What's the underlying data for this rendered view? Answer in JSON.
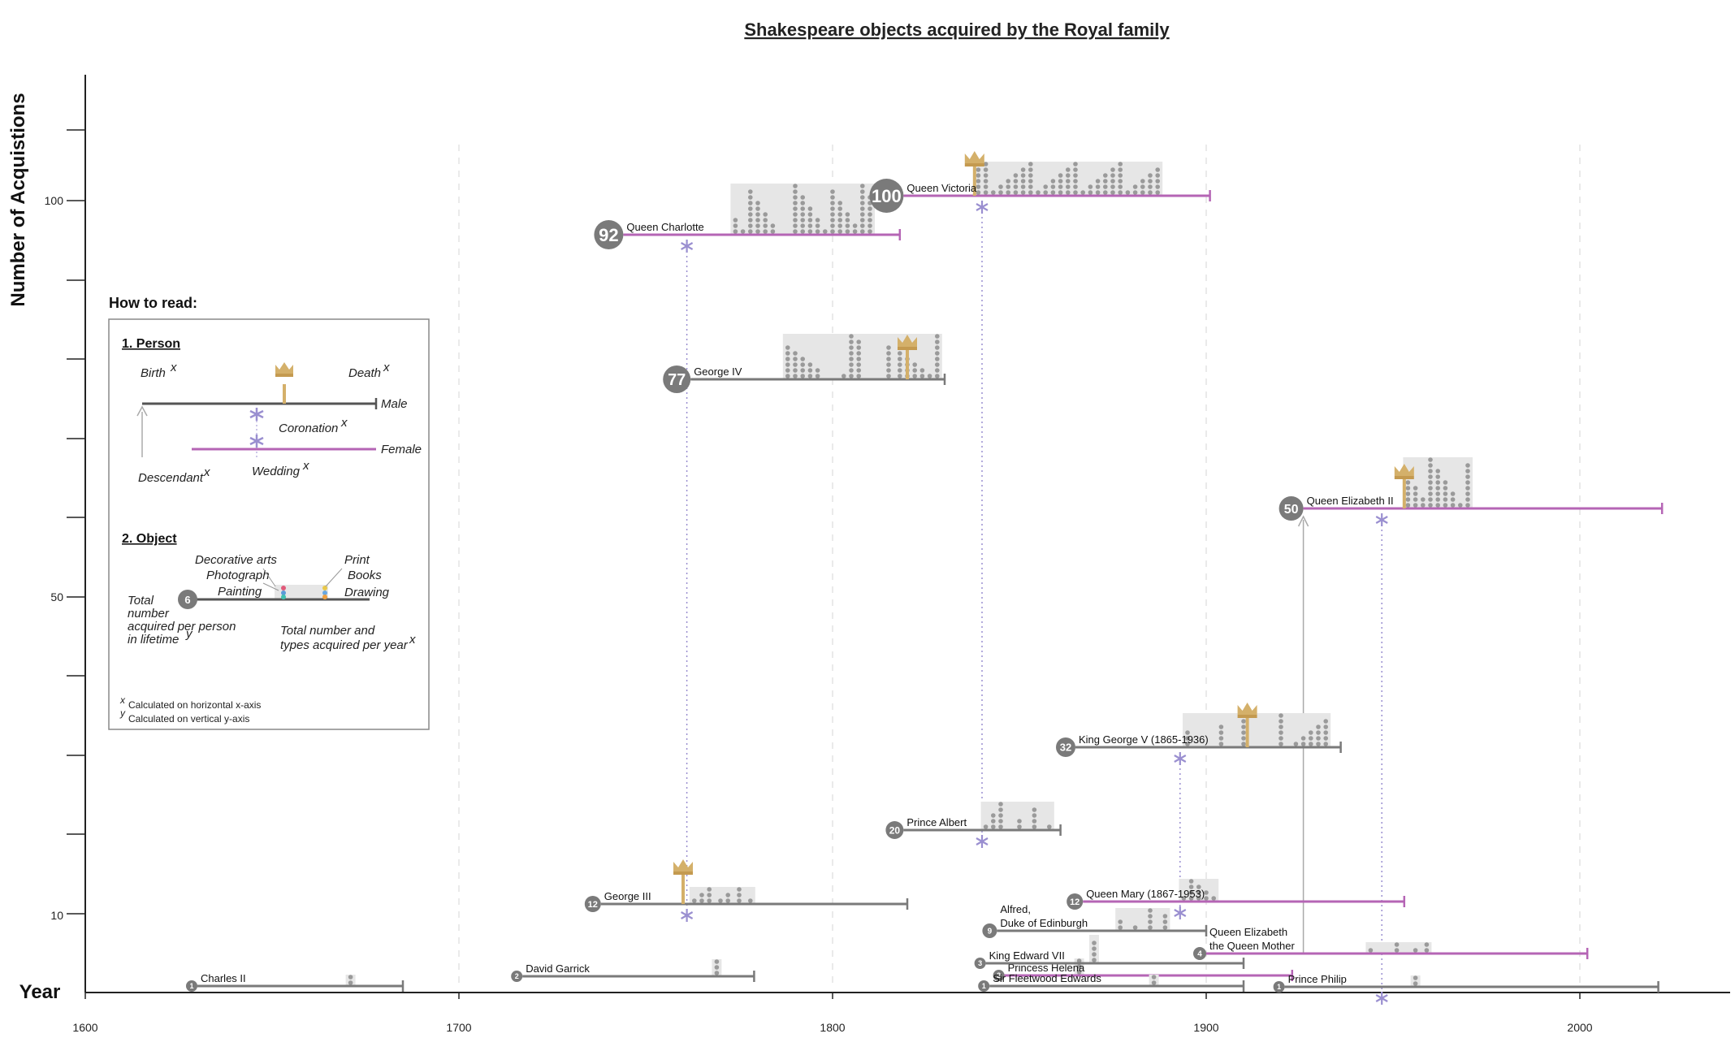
{
  "chart_data": {
    "type": "timeline",
    "title": "Shakespeare objects acquired by the Royal family",
    "xlabel": "Year",
    "ylabel": "Number of Acquistions",
    "xlim": [
      1600,
      2040
    ],
    "x_ticks": [
      1600,
      1700,
      1800,
      1900,
      2000
    ],
    "y_ticks_labeled": [
      10,
      50,
      100
    ],
    "colors": {
      "male": "#7a7a7a",
      "female": "#b565b5",
      "coronation": "#d4b06a",
      "wedding": "#9a8fd0",
      "object": "#9a9a9a",
      "background": "#e6e6e6"
    },
    "persons": [
      {
        "name": "Charles II",
        "total": 1,
        "birth": 1630,
        "death": 1685,
        "gender": "male",
        "acq_years": [
          1671
        ]
      },
      {
        "name": "David Garrick",
        "total": 2,
        "birth": 1717,
        "death": 1779,
        "gender": "male",
        "acq_years": [
          1769
        ]
      },
      {
        "name": "George III",
        "total": 12,
        "birth": 1738,
        "death": 1820,
        "gender": "male",
        "coronation": 1760,
        "wedding": 1761,
        "acq_years": [
          1763,
          1765,
          1767,
          1770,
          1772,
          1775,
          1778
        ]
      },
      {
        "name": "Queen Charlotte",
        "total": 92,
        "birth": 1744,
        "death": 1818,
        "gender": "female",
        "wedding": 1761,
        "acq_years": [
          1774,
          1776,
          1778,
          1780,
          1782,
          1784,
          1790,
          1792,
          1794,
          1796,
          1798,
          1800,
          1802,
          1804,
          1806,
          1808,
          1810
        ]
      },
      {
        "name": "George IV",
        "total": 77,
        "birth": 1762,
        "death": 1830,
        "gender": "male",
        "coronation": 1820,
        "acq_years": [
          1788,
          1790,
          1792,
          1794,
          1796,
          1803,
          1805,
          1807,
          1815,
          1818,
          1820,
          1822,
          1824,
          1826,
          1828
        ]
      },
      {
        "name": "Queen Victoria",
        "total": 100,
        "birth": 1819,
        "death": 1901,
        "gender": "female",
        "coronation": 1838,
        "wedding": 1840,
        "acq_years": [
          1839,
          1841,
          1843,
          1845,
          1847,
          1849,
          1851,
          1853,
          1855,
          1857,
          1859,
          1861,
          1863,
          1865,
          1867,
          1869,
          1871,
          1873,
          1875,
          1877,
          1879,
          1881,
          1883,
          1885,
          1887
        ]
      },
      {
        "name": "Prince Albert",
        "total": 20,
        "birth": 1819,
        "death": 1861,
        "gender": "male",
        "wedding": 1840,
        "acq_years": [
          1841,
          1843,
          1845,
          1850,
          1854,
          1858
        ]
      },
      {
        "name": "Princess Helena",
        "total": 2,
        "birth": 1846,
        "death": 1923,
        "gender": "female",
        "acq_years": [
          1866
        ]
      },
      {
        "name": "Sir Fleetwood Edwards",
        "total": 1,
        "birth": 1842,
        "death": 1910,
        "gender": "male",
        "acq_years": [
          1886
        ]
      },
      {
        "name": "King Edward VII",
        "total": 3,
        "birth": 1841,
        "death": 1910,
        "gender": "male",
        "acq_years": [
          1870
        ]
      },
      {
        "name": "Alfred, Duke of Edinburgh",
        "total": 9,
        "birth": 1844,
        "death": 1900,
        "gender": "male",
        "acq_years": [
          1877,
          1881,
          1885,
          1889
        ]
      },
      {
        "name": "Queen Mary (1867-1953)",
        "total": 12,
        "birth": 1867,
        "death": 1953,
        "gender": "female",
        "wedding": 1893,
        "acq_years": [
          1894,
          1896,
          1898,
          1900,
          1902
        ]
      },
      {
        "name": "King George V (1865-1936)",
        "total": 32,
        "birth": 1865,
        "death": 1936,
        "gender": "male",
        "coronation": 1911,
        "wedding": 1893,
        "acq_years": [
          1895,
          1904,
          1910,
          1920,
          1924,
          1926,
          1928,
          1930,
          1932
        ]
      },
      {
        "name": "Queen Elizabeth the Queen Mother",
        "total": 4,
        "birth": 1900,
        "death": 2002,
        "gender": "female",
        "acq_years": [
          1944,
          1951,
          1956,
          1959
        ]
      },
      {
        "name": "Queen Elizabeth II",
        "total": 50,
        "birth": 1926,
        "death": 2022,
        "gender": "female",
        "coronation": 1953,
        "wedding": 1947,
        "acq_years": [
          1954,
          1956,
          1958,
          1960,
          1962,
          1964,
          1966,
          1968,
          1970
        ]
      },
      {
        "name": "Prince Philip",
        "total": 1,
        "birth": 1921,
        "death": 2021,
        "gender": "male",
        "wedding": 1947,
        "acq_years": [
          1956
        ]
      }
    ],
    "legend": {
      "title": "How to read:",
      "section1": "1. Person",
      "birth": "Birth",
      "death": "Death",
      "male": "Male",
      "female": "Female",
      "coronation": "Coronation",
      "descendant": "Descendant",
      "wedding": "Wedding",
      "section2": "2. Object",
      "decorative": "Decorative arts",
      "photograph": "Photograph",
      "painting": "Painting",
      "print": "Print",
      "books": "Books",
      "drawing": "Drawing",
      "example_total": "6",
      "total_line1": "Total",
      "total_line2": "number",
      "total_line3": "acquired per person",
      "total_line4": "in lifetime",
      "types_line1": "Total number and",
      "types_line2": "types acquired per year",
      "sup_x": "x",
      "sup_y": "y",
      "note_x": "Calculated on horizontal x-axis",
      "note_y": "Calculated on vertical y-axis"
    }
  }
}
